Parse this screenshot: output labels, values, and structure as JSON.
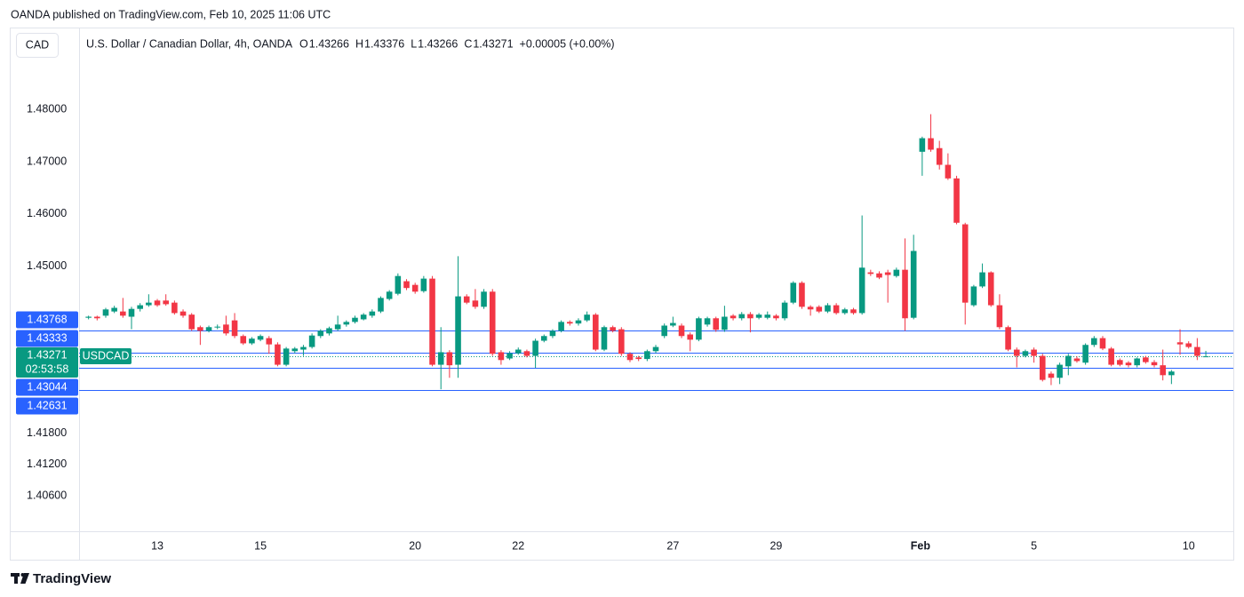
{
  "header": {
    "published": "OANDA published on TradingView.com, Feb 10, 2025 11:06 UTC",
    "currency": "CAD",
    "footer": "TradingView"
  },
  "chart_data": {
    "type": "candlestick",
    "title": "U.S. Dollar / Canadian Dollar, 4h, OANDA",
    "ohlc_legend": [
      {
        "label": "O",
        "value": 1.43266
      },
      {
        "label": "H",
        "value": 1.43376
      },
      {
        "label": "L",
        "value": 1.43266
      },
      {
        "label": "C",
        "value": 1.43271
      }
    ],
    "change": "+0.00005 (+0.00%)",
    "up_color": "#089981",
    "down_color": "#f23645",
    "open": [
      1.4401,
      1.4403,
      1.4405,
      1.4413,
      1.4413,
      1.4403,
      1.4418,
      1.4425,
      1.4434,
      1.4434,
      1.443,
      1.4413,
      1.4407,
      1.4383,
      1.4376,
      1.4383,
      1.4388,
      1.4396,
      1.4366,
      1.4352,
      1.4359,
      1.4362,
      1.435,
      1.4311,
      1.4337,
      1.434,
      1.4345,
      1.4366,
      1.4371,
      1.4379,
      1.4388,
      1.4393,
      1.4398,
      1.4405,
      1.4413,
      1.4437,
      1.4447,
      1.4471,
      1.4464,
      1.4452,
      1.4476,
      1.4311,
      1.4335,
      1.4311,
      1.4442,
      1.4434,
      1.4422,
      1.4451,
      1.4335,
      1.4323,
      1.4333,
      1.4337,
      1.4328,
      1.4357,
      1.4366,
      1.4376,
      1.4393,
      1.439,
      1.4396,
      1.4407,
      1.434,
      1.4383,
      1.4379,
      1.4332,
      1.4325,
      1.4322,
      1.4337,
      1.4366,
      1.4386,
      1.4386,
      1.4369,
      1.4359,
      1.4388,
      1.44,
      1.4378,
      1.4405,
      1.44,
      1.4408,
      1.4401,
      1.4401,
      1.4405,
      1.44,
      1.443,
      1.4468,
      1.4422,
      1.4422,
      1.4413,
      1.4425,
      1.441,
      1.4417,
      1.441,
      1.4488,
      1.4486,
      1.4488,
      1.4481,
      1.4493,
      1.4401,
      1.4719,
      1.4745,
      1.4726,
      1.4694,
      1.4668,
      1.458,
      1.4425,
      1.4461,
      1.4488,
      1.4425,
      1.4383,
      1.434,
      1.4328,
      1.434,
      1.4328,
      1.4294,
      1.4286,
      1.4308,
      1.4323,
      1.4315,
      1.4349,
      1.4362,
      1.4342,
      1.432,
      1.4315,
      1.431,
      1.4325,
      1.4316,
      1.431,
      1.4291,
      1.4354,
      1.4352,
      1.4345,
      1.43266
    ],
    "high": [
      1.4405,
      1.4405,
      1.442,
      1.4424,
      1.4439,
      1.4422,
      1.4429,
      1.4446,
      1.4437,
      1.4446,
      1.4434,
      1.4417,
      1.441,
      1.4386,
      1.4386,
      1.4388,
      1.4405,
      1.441,
      1.4369,
      1.4364,
      1.4369,
      1.4366,
      1.4354,
      1.4345,
      1.4345,
      1.4349,
      1.4371,
      1.4379,
      1.4384,
      1.4405,
      1.4396,
      1.4405,
      1.441,
      1.4417,
      1.4442,
      1.4454,
      1.4486,
      1.4475,
      1.4468,
      1.4481,
      1.4481,
      1.4383,
      1.4339,
      1.4519,
      1.4446,
      1.4456,
      1.4456,
      1.4456,
      1.4339,
      1.4337,
      1.4344,
      1.434,
      1.4361,
      1.4369,
      1.4379,
      1.4396,
      1.4396,
      1.44,
      1.4413,
      1.441,
      1.4386,
      1.4386,
      1.4383,
      1.4335,
      1.4328,
      1.434,
      1.4349,
      1.439,
      1.4403,
      1.439,
      1.4373,
      1.4403,
      1.4403,
      1.4403,
      1.4424,
      1.4408,
      1.4412,
      1.4412,
      1.441,
      1.4413,
      1.4408,
      1.4434,
      1.4471,
      1.4471,
      1.4425,
      1.4425,
      1.4429,
      1.4429,
      1.442,
      1.442,
      1.4597,
      1.4493,
      1.449,
      1.4493,
      1.4497,
      1.4553,
      1.456,
      1.4748,
      1.4791,
      1.474,
      1.4716,
      1.4673,
      1.4583,
      1.4464,
      1.4505,
      1.449,
      1.4446,
      1.4386,
      1.4344,
      1.434,
      1.4344,
      1.4332,
      1.4298,
      1.4315,
      1.4332,
      1.4327,
      1.4352,
      1.4366,
      1.4366,
      1.4345,
      1.4323,
      1.4318,
      1.4325,
      1.4328,
      1.432,
      1.434,
      1.4301,
      1.4379,
      1.4356,
      1.4362,
      1.43376
    ],
    "low": [
      1.4398,
      1.4396,
      1.4401,
      1.441,
      1.4401,
      1.4379,
      1.4413,
      1.4422,
      1.4422,
      1.4424,
      1.4407,
      1.4401,
      1.4376,
      1.4349,
      1.4373,
      1.4379,
      1.4367,
      1.4362,
      1.4349,
      1.4349,
      1.4356,
      1.4332,
      1.4308,
      1.4308,
      1.4333,
      1.4328,
      1.4342,
      1.4362,
      1.4367,
      1.4376,
      1.4384,
      1.439,
      1.4396,
      1.4401,
      1.441,
      1.4434,
      1.4444,
      1.4454,
      1.4447,
      1.4449,
      1.4308,
      1.4264,
      1.4286,
      1.4286,
      1.4427,
      1.4418,
      1.4418,
      1.4328,
      1.4311,
      1.432,
      1.433,
      1.4325,
      1.4305,
      1.4354,
      1.4362,
      1.4373,
      1.4386,
      1.4386,
      1.4393,
      1.4337,
      1.4337,
      1.4373,
      1.4328,
      1.4316,
      1.4318,
      1.4318,
      1.4333,
      1.4362,
      1.4383,
      1.4362,
      1.4337,
      1.4356,
      1.4384,
      1.4374,
      1.4374,
      1.4396,
      1.4396,
      1.4373,
      1.4398,
      1.4398,
      1.4396,
      1.4396,
      1.4427,
      1.4418,
      1.4405,
      1.441,
      1.441,
      1.4407,
      1.4407,
      1.4407,
      1.4407,
      1.4481,
      1.4475,
      1.443,
      1.4478,
      1.4376,
      1.4398,
      1.4673,
      1.4719,
      1.4685,
      1.4665,
      1.458,
      1.4388,
      1.4422,
      1.4458,
      1.4422,
      1.4379,
      1.4337,
      1.4306,
      1.4325,
      1.4315,
      1.4279,
      1.4272,
      1.4274,
      1.4291,
      1.4315,
      1.4311,
      1.4345,
      1.4339,
      1.4308,
      1.4308,
      1.4306,
      1.4306,
      1.4313,
      1.4306,
      1.4281,
      1.4274,
      1.433,
      1.4342,
      1.432,
      1.43266
    ],
    "close": [
      1.4403,
      1.44,
      1.4417,
      1.442,
      1.4405,
      1.4418,
      1.4425,
      1.443,
      1.4425,
      1.4427,
      1.441,
      1.4405,
      1.4379,
      1.4376,
      1.4383,
      1.4384,
      1.4371,
      1.4366,
      1.4352,
      1.4361,
      1.4366,
      1.435,
      1.4311,
      1.4342,
      1.4342,
      1.4345,
      1.4367,
      1.4376,
      1.4381,
      1.4388,
      1.4393,
      1.4401,
      1.4407,
      1.4413,
      1.4439,
      1.4451,
      1.4481,
      1.4458,
      1.4451,
      1.4476,
      1.4311,
      1.4335,
      1.431,
      1.4442,
      1.443,
      1.4422,
      1.4451,
      1.4332,
      1.432,
      1.4333,
      1.434,
      1.4328,
      1.4357,
      1.4366,
      1.4376,
      1.4393,
      1.439,
      1.4396,
      1.4407,
      1.434,
      1.4383,
      1.4376,
      1.4332,
      1.432,
      1.4322,
      1.4337,
      1.4345,
      1.4386,
      1.4391,
      1.4366,
      1.4359,
      1.44,
      1.44,
      1.4378,
      1.4403,
      1.44,
      1.4408,
      1.44,
      1.4407,
      1.4407,
      1.44,
      1.443,
      1.4468,
      1.4422,
      1.4417,
      1.4413,
      1.4425,
      1.441,
      1.4417,
      1.441,
      1.4497,
      1.4485,
      1.4478,
      1.4483,
      1.4493,
      1.44,
      1.4529,
      1.4745,
      1.4723,
      1.4694,
      1.4668,
      1.4583,
      1.443,
      1.4461,
      1.4488,
      1.4425,
      1.4383,
      1.434,
      1.4328,
      1.4337,
      1.4328,
      1.4282,
      1.4286,
      1.4311,
      1.4328,
      1.4318,
      1.4349,
      1.4362,
      1.4342,
      1.4311,
      1.4311,
      1.431,
      1.4323,
      1.4316,
      1.431,
      1.4291,
      1.4298,
      1.435,
      1.4345,
      1.4328,
      1.43271
    ],
    "xlim": [
      -1.1,
      133.2
    ],
    "xticks": [
      {
        "value": 8,
        "label": "13"
      },
      {
        "value": 20,
        "label": "15"
      },
      {
        "value": 38,
        "label": "20"
      },
      {
        "value": 50,
        "label": "22"
      },
      {
        "value": 68,
        "label": "27"
      },
      {
        "value": 80,
        "label": "29"
      },
      {
        "value": 96.8,
        "label": "Feb"
      },
      {
        "value": 110,
        "label": "5"
      },
      {
        "value": 128,
        "label": "10"
      }
    ],
    "ylim": [
      1.3992,
      1.4957
    ],
    "yticks": [
      {
        "value": 1.48,
        "label": "1.48000"
      },
      {
        "value": 1.47,
        "label": "1.47000"
      },
      {
        "value": 1.46,
        "label": "1.46000"
      },
      {
        "value": 1.45,
        "label": "1.45000"
      },
      {
        "value": 1.418,
        "label": "1.41800"
      },
      {
        "value": 1.412,
        "label": "1.41200"
      },
      {
        "value": 1.406,
        "label": "1.40600"
      }
    ],
    "levels_color": "#2962ff",
    "levels": [
      1.43768,
      1.43333,
      1.43044,
      1.42631
    ],
    "current_price": {
      "value": 1.43271,
      "countdown": "02:53:58",
      "symbol": "USDCAD",
      "color": "#089981"
    }
  }
}
